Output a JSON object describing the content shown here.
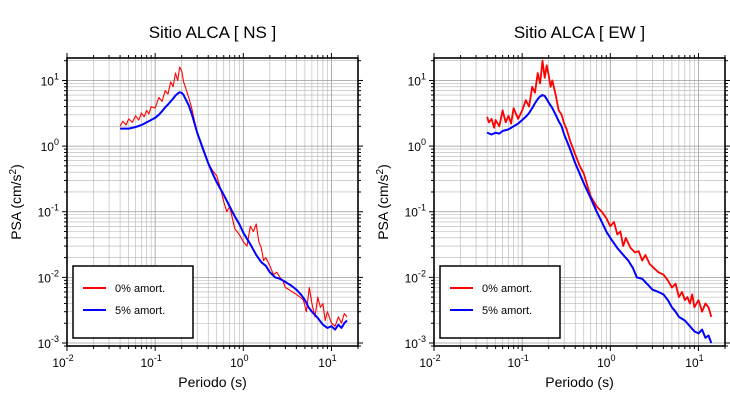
{
  "chart_data": [
    {
      "type": "line",
      "title": "Sitio ALCA [ NS ]",
      "xlabel": "Periodo (s)",
      "ylabel_main": "PSA (cm/s",
      "ylabel_sup": "2",
      "ylabel_end": ")",
      "xscale": "log",
      "yscale": "log",
      "xlim": [
        0.01,
        20
      ],
      "ylim": [
        0.0009,
        22
      ],
      "grid": true,
      "legend_position": "bottom-left",
      "x_ticks": [
        "10",
        "10",
        "10",
        "10"
      ],
      "x_tick_exps": [
        "-2",
        "-1",
        "0",
        "1"
      ],
      "y_ticks": [
        "10",
        "10",
        "10",
        "10",
        "10"
      ],
      "y_tick_exps": [
        "-3",
        "-2",
        "-1",
        "0",
        "1"
      ],
      "series": [
        {
          "name": "0% amort.",
          "color": "#ff0000",
          "x": [
            0.04,
            0.043,
            0.047,
            0.05,
            0.055,
            0.06,
            0.065,
            0.07,
            0.075,
            0.08,
            0.085,
            0.09,
            0.1,
            0.11,
            0.12,
            0.13,
            0.14,
            0.15,
            0.16,
            0.17,
            0.18,
            0.19,
            0.2,
            0.21,
            0.22,
            0.24,
            0.26,
            0.28,
            0.3,
            0.35,
            0.4,
            0.45,
            0.5,
            0.55,
            0.6,
            0.65,
            0.7,
            0.75,
            0.8,
            0.9,
            1.0,
            1.1,
            1.2,
            1.3,
            1.4,
            1.5,
            1.6,
            1.7,
            1.8,
            2.0,
            2.2,
            2.4,
            2.6,
            2.8,
            3.0,
            3.3,
            3.6,
            4.0,
            4.4,
            4.8,
            5.2,
            5.6,
            6.0,
            6.5,
            7.0,
            7.5,
            8.0,
            8.5,
            9.0,
            10,
            11,
            12,
            13,
            14,
            15
          ],
          "y": [
            2.0,
            2.4,
            2.1,
            2.6,
            2.3,
            2.9,
            2.5,
            3.2,
            2.8,
            3.5,
            3.1,
            4.0,
            3.8,
            5.5,
            4.8,
            7.0,
            6.2,
            9.5,
            8.0,
            13.0,
            10.0,
            16.0,
            14.0,
            9.5,
            8.0,
            5.5,
            3.8,
            2.4,
            1.6,
            0.85,
            0.55,
            0.42,
            0.35,
            0.23,
            0.14,
            0.1,
            0.12,
            0.08,
            0.055,
            0.045,
            0.035,
            0.03,
            0.06,
            0.05,
            0.065,
            0.035,
            0.028,
            0.018,
            0.02,
            0.015,
            0.011,
            0.012,
            0.01,
            0.009,
            0.007,
            0.0065,
            0.006,
            0.0055,
            0.005,
            0.0045,
            0.003,
            0.007,
            0.004,
            0.0025,
            0.005,
            0.0035,
            0.004,
            0.0022,
            0.003,
            0.002,
            0.0018,
            0.0025,
            0.002,
            0.0028,
            0.0025
          ]
        },
        {
          "name": "5% amort.",
          "color": "#0000ff",
          "x": [
            0.04,
            0.045,
            0.05,
            0.055,
            0.06,
            0.07,
            0.08,
            0.09,
            0.1,
            0.11,
            0.12,
            0.13,
            0.14,
            0.15,
            0.16,
            0.17,
            0.18,
            0.19,
            0.2,
            0.21,
            0.22,
            0.24,
            0.26,
            0.28,
            0.3,
            0.35,
            0.4,
            0.45,
            0.5,
            0.6,
            0.7,
            0.8,
            0.9,
            1.0,
            1.2,
            1.4,
            1.6,
            1.8,
            2.0,
            2.3,
            2.6,
            3.0,
            3.5,
            4.0,
            4.5,
            5.0,
            5.5,
            6.0,
            7.0,
            8.0,
            9.0,
            10,
            11,
            12,
            13,
            14,
            15
          ],
          "y": [
            1.85,
            1.85,
            1.85,
            1.9,
            1.95,
            2.1,
            2.3,
            2.5,
            2.7,
            3.0,
            3.4,
            3.9,
            4.3,
            4.8,
            5.3,
            5.9,
            6.3,
            6.6,
            6.5,
            6.0,
            5.3,
            4.2,
            3.1,
            2.2,
            1.6,
            0.9,
            0.55,
            0.38,
            0.28,
            0.18,
            0.12,
            0.085,
            0.065,
            0.048,
            0.032,
            0.022,
            0.017,
            0.015,
            0.012,
            0.01,
            0.0095,
            0.0085,
            0.0075,
            0.0065,
            0.0055,
            0.0045,
            0.0035,
            0.003,
            0.0024,
            0.0019,
            0.0017,
            0.0018,
            0.0016,
            0.0019,
            0.0017,
            0.002,
            0.0022
          ]
        }
      ]
    },
    {
      "type": "line",
      "title": "Sitio ALCA [ EW ]",
      "xlabel": "Periodo (s)",
      "ylabel_main": "PSA (cm/s",
      "ylabel_sup": "2",
      "ylabel_end": ")",
      "xscale": "log",
      "yscale": "log",
      "xlim": [
        0.01,
        20
      ],
      "ylim": [
        0.0009,
        22
      ],
      "grid": true,
      "legend_position": "bottom-left",
      "x_ticks": [
        "10",
        "10",
        "10",
        "10"
      ],
      "x_tick_exps": [
        "-2",
        "-1",
        "0",
        "1"
      ],
      "y_ticks": [
        "10",
        "10",
        "10",
        "10",
        "10"
      ],
      "y_tick_exps": [
        "-3",
        "-2",
        "-1",
        "0",
        "1"
      ],
      "series": [
        {
          "name": "0% amort.",
          "color": "#ff0000",
          "x": [
            0.04,
            0.042,
            0.045,
            0.048,
            0.05,
            0.055,
            0.06,
            0.065,
            0.07,
            0.075,
            0.08,
            0.09,
            0.1,
            0.11,
            0.12,
            0.13,
            0.14,
            0.15,
            0.16,
            0.17,
            0.18,
            0.19,
            0.2,
            0.21,
            0.22,
            0.24,
            0.26,
            0.28,
            0.3,
            0.32,
            0.35,
            0.4,
            0.45,
            0.5,
            0.55,
            0.6,
            0.7,
            0.8,
            0.9,
            1.0,
            1.1,
            1.2,
            1.3,
            1.4,
            1.5,
            1.7,
            1.9,
            2.1,
            2.3,
            2.5,
            2.8,
            3.1,
            3.5,
            4.0,
            4.5,
            5.0,
            5.5,
            6.0,
            6.5,
            7.0,
            7.5,
            8.0,
            8.5,
            9.0,
            10,
            11,
            12,
            13,
            14
          ],
          "y": [
            2.8,
            2.3,
            2.6,
            1.9,
            2.5,
            2.0,
            3.5,
            2.3,
            2.9,
            2.2,
            3.8,
            2.6,
            3.5,
            5.0,
            4.0,
            8.0,
            6.5,
            13.0,
            9.0,
            20.0,
            11.0,
            17.0,
            12.0,
            8.0,
            10.0,
            6.0,
            3.5,
            3.0,
            2.2,
            1.8,
            1.2,
            0.75,
            0.5,
            0.38,
            0.25,
            0.17,
            0.12,
            0.1,
            0.08,
            0.06,
            0.07,
            0.045,
            0.05,
            0.03,
            0.04,
            0.028,
            0.024,
            0.025,
            0.018,
            0.022,
            0.016,
            0.014,
            0.012,
            0.011,
            0.009,
            0.007,
            0.008,
            0.005,
            0.006,
            0.0045,
            0.005,
            0.004,
            0.0055,
            0.0035,
            0.0045,
            0.003,
            0.004,
            0.0035,
            0.0025
          ]
        },
        {
          "name": "5% amort.",
          "color": "#0000ff",
          "x": [
            0.04,
            0.045,
            0.05,
            0.055,
            0.06,
            0.07,
            0.08,
            0.09,
            0.1,
            0.11,
            0.12,
            0.13,
            0.14,
            0.15,
            0.16,
            0.17,
            0.18,
            0.19,
            0.2,
            0.22,
            0.24,
            0.26,
            0.28,
            0.3,
            0.35,
            0.4,
            0.45,
            0.5,
            0.6,
            0.7,
            0.8,
            0.9,
            1.0,
            1.2,
            1.4,
            1.6,
            1.8,
            2.0,
            2.3,
            2.6,
            3.0,
            3.5,
            4.0,
            4.5,
            5.0,
            5.5,
            6.0,
            7.0,
            8.0,
            9.0,
            10,
            11,
            12,
            13,
            14
          ],
          "y": [
            1.6,
            1.5,
            1.6,
            1.55,
            1.7,
            1.8,
            2.0,
            2.2,
            2.5,
            2.8,
            3.2,
            3.8,
            4.5,
            5.2,
            5.7,
            6.0,
            5.8,
            5.2,
            4.6,
            3.8,
            3.0,
            2.4,
            2.0,
            1.5,
            0.9,
            0.55,
            0.38,
            0.27,
            0.16,
            0.1,
            0.07,
            0.05,
            0.04,
            0.028,
            0.022,
            0.018,
            0.014,
            0.01,
            0.0095,
            0.008,
            0.0065,
            0.006,
            0.0055,
            0.0045,
            0.0035,
            0.003,
            0.0025,
            0.0022,
            0.0018,
            0.0015,
            0.0014,
            0.0016,
            0.0012,
            0.0013,
            0.001
          ]
        }
      ]
    }
  ]
}
